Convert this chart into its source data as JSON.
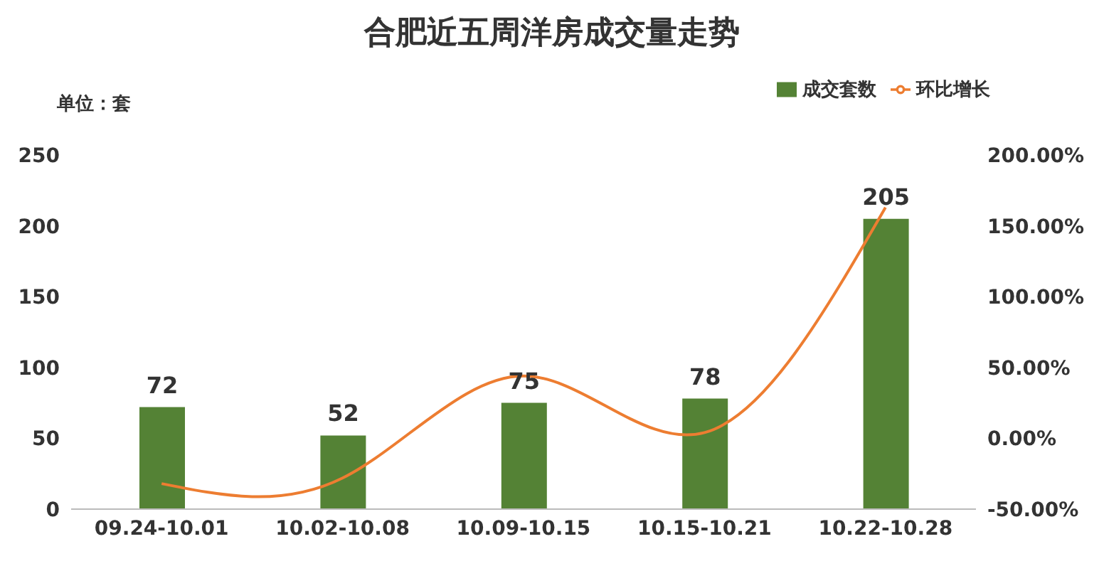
{
  "chart_data": {
    "type": "bar",
    "title": "合肥近五周洋房成交量走势",
    "ylabel": "单位：套",
    "categories": [
      "09.24-10.01",
      "10.02-10.08",
      "10.09-10.15",
      "10.15-10.21",
      "10.22-10.28"
    ],
    "series": [
      {
        "name": "成交套数",
        "color": "#548235",
        "values": [
          72,
          52,
          75,
          78,
          205
        ],
        "value_labels": [
          "72",
          "52",
          "75",
          "78",
          "205"
        ]
      },
      {
        "name": "环比增长",
        "type": "line",
        "axis": "y2",
        "color": "#ed7d31",
        "values": [
          -32,
          -28,
          44,
          4,
          163
        ]
      }
    ],
    "ylim": [
      0,
      250
    ],
    "yticks": [
      0,
      50,
      100,
      150,
      200,
      250
    ],
    "y2lim": [
      -50,
      200
    ],
    "y2ticks": [
      {
        "value": -50,
        "label": "-50.00%"
      },
      {
        "value": 0,
        "label": "0.00%"
      },
      {
        "value": 50,
        "label": "50.00%"
      },
      {
        "value": 100,
        "label": "100.00%"
      },
      {
        "value": 150,
        "label": "150.00%"
      },
      {
        "value": 200,
        "label": "200.00%"
      }
    ],
    "legend": "top right",
    "marker": "none"
  }
}
